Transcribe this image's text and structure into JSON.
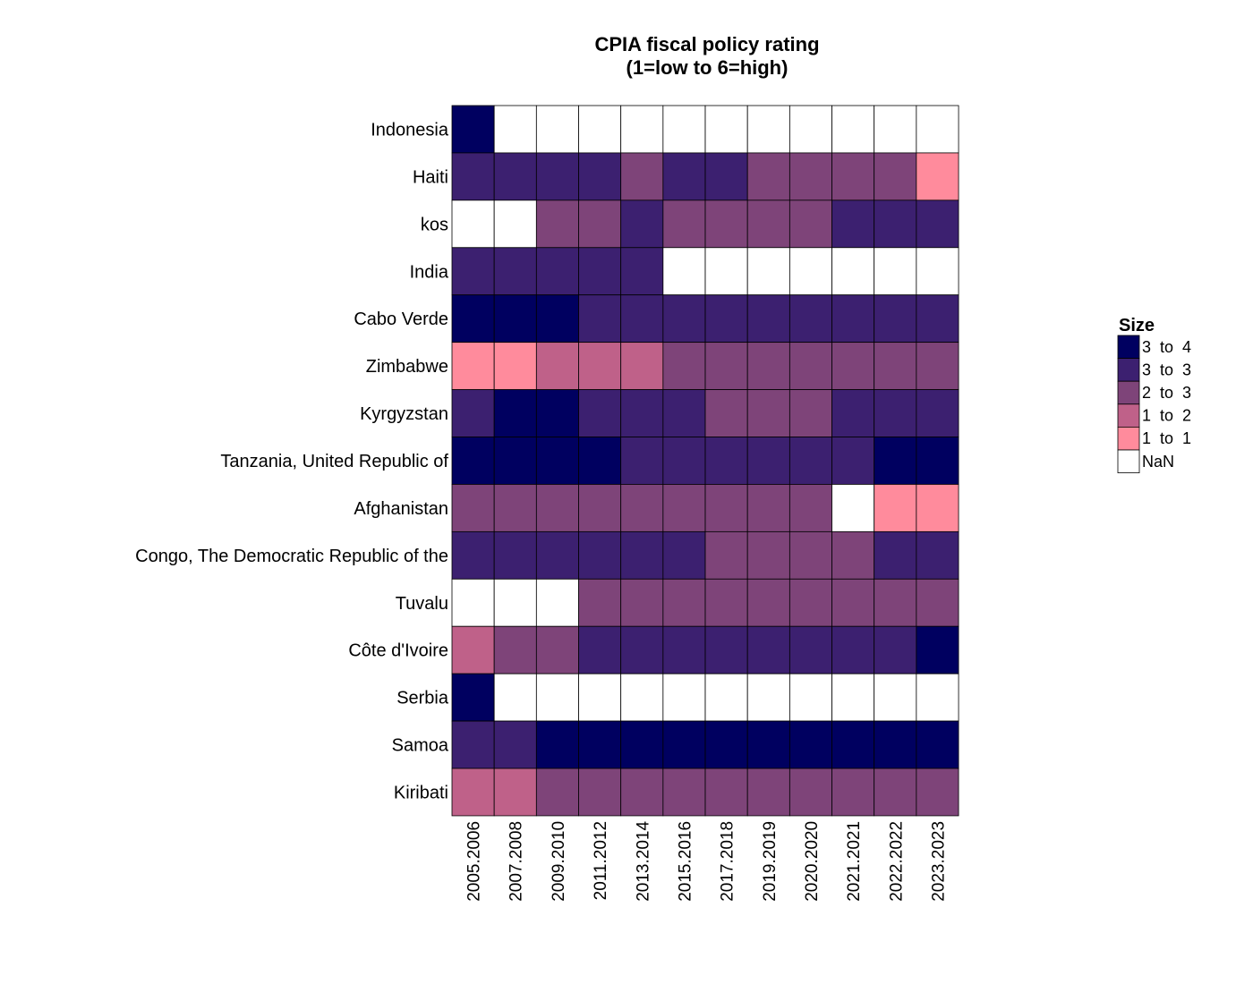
{
  "chart_data": {
    "type": "heatmap",
    "title": "CPIA fiscal policy rating",
    "subtitle": "(1=low to 6=high)",
    "rows": [
      "Indonesia",
      "Haiti",
      "kos",
      "India",
      "Cabo Verde",
      "Zimbabwe",
      "Kyrgyzstan",
      "Tanzania, United Republic of",
      "Afghanistan",
      "Congo, The Democratic Republic of the",
      "Tuvalu",
      "Côte d'Ivoire",
      "Serbia",
      "Samoa",
      "Kiribati"
    ],
    "columns": [
      "2005.2006",
      "2007.2008",
      "2009.2010",
      "2011.2012",
      "2013.2014",
      "2015.2016",
      "2017.2018",
      "2019.2019",
      "2020.2020",
      "2021.2021",
      "2022.2022",
      "2023.2023"
    ],
    "cells": [
      [
        0,
        null,
        null,
        null,
        null,
        null,
        null,
        null,
        null,
        null,
        null,
        null
      ],
      [
        1,
        1,
        1,
        1,
        2,
        1,
        1,
        2,
        2,
        2,
        2,
        4
      ],
      [
        null,
        null,
        2,
        2,
        1,
        2,
        2,
        2,
        2,
        1,
        1,
        1
      ],
      [
        1,
        1,
        1,
        1,
        1,
        null,
        null,
        null,
        null,
        null,
        null,
        null
      ],
      [
        0,
        0,
        0,
        1,
        1,
        1,
        1,
        1,
        1,
        1,
        1,
        1
      ],
      [
        4,
        4,
        3,
        3,
        3,
        2,
        2,
        2,
        2,
        2,
        2,
        2
      ],
      [
        1,
        0,
        0,
        1,
        1,
        1,
        2,
        2,
        2,
        1,
        1,
        1
      ],
      [
        0,
        0,
        0,
        0,
        1,
        1,
        1,
        1,
        1,
        1,
        0,
        0
      ],
      [
        2,
        2,
        2,
        2,
        2,
        2,
        2,
        2,
        2,
        null,
        4,
        4
      ],
      [
        1,
        1,
        1,
        1,
        1,
        1,
        2,
        2,
        2,
        2,
        1,
        1
      ],
      [
        null,
        null,
        null,
        2,
        2,
        2,
        2,
        2,
        2,
        2,
        2,
        2
      ],
      [
        3,
        2,
        2,
        1,
        1,
        1,
        1,
        1,
        1,
        1,
        1,
        0
      ],
      [
        0,
        null,
        null,
        null,
        null,
        null,
        null,
        null,
        null,
        null,
        null,
        null
      ],
      [
        1,
        1,
        0,
        0,
        0,
        0,
        0,
        0,
        0,
        0,
        0,
        0
      ],
      [
        3,
        3,
        2,
        2,
        2,
        2,
        2,
        2,
        2,
        2,
        2,
        2
      ]
    ],
    "legend": {
      "title": "Size",
      "position": "right",
      "entries": [
        {
          "label": "3  to  4",
          "color": "#000060"
        },
        {
          "label": "3  to  3",
          "color": "#3c2070"
        },
        {
          "label": "2  to  3",
          "color": "#7e4479"
        },
        {
          "label": "1  to  2",
          "color": "#bf6189"
        },
        {
          "label": "1  to  1",
          "color": "#ff8b9c"
        },
        {
          "label": "NaN",
          "color": "#ffffff"
        }
      ]
    },
    "grid": false
  }
}
